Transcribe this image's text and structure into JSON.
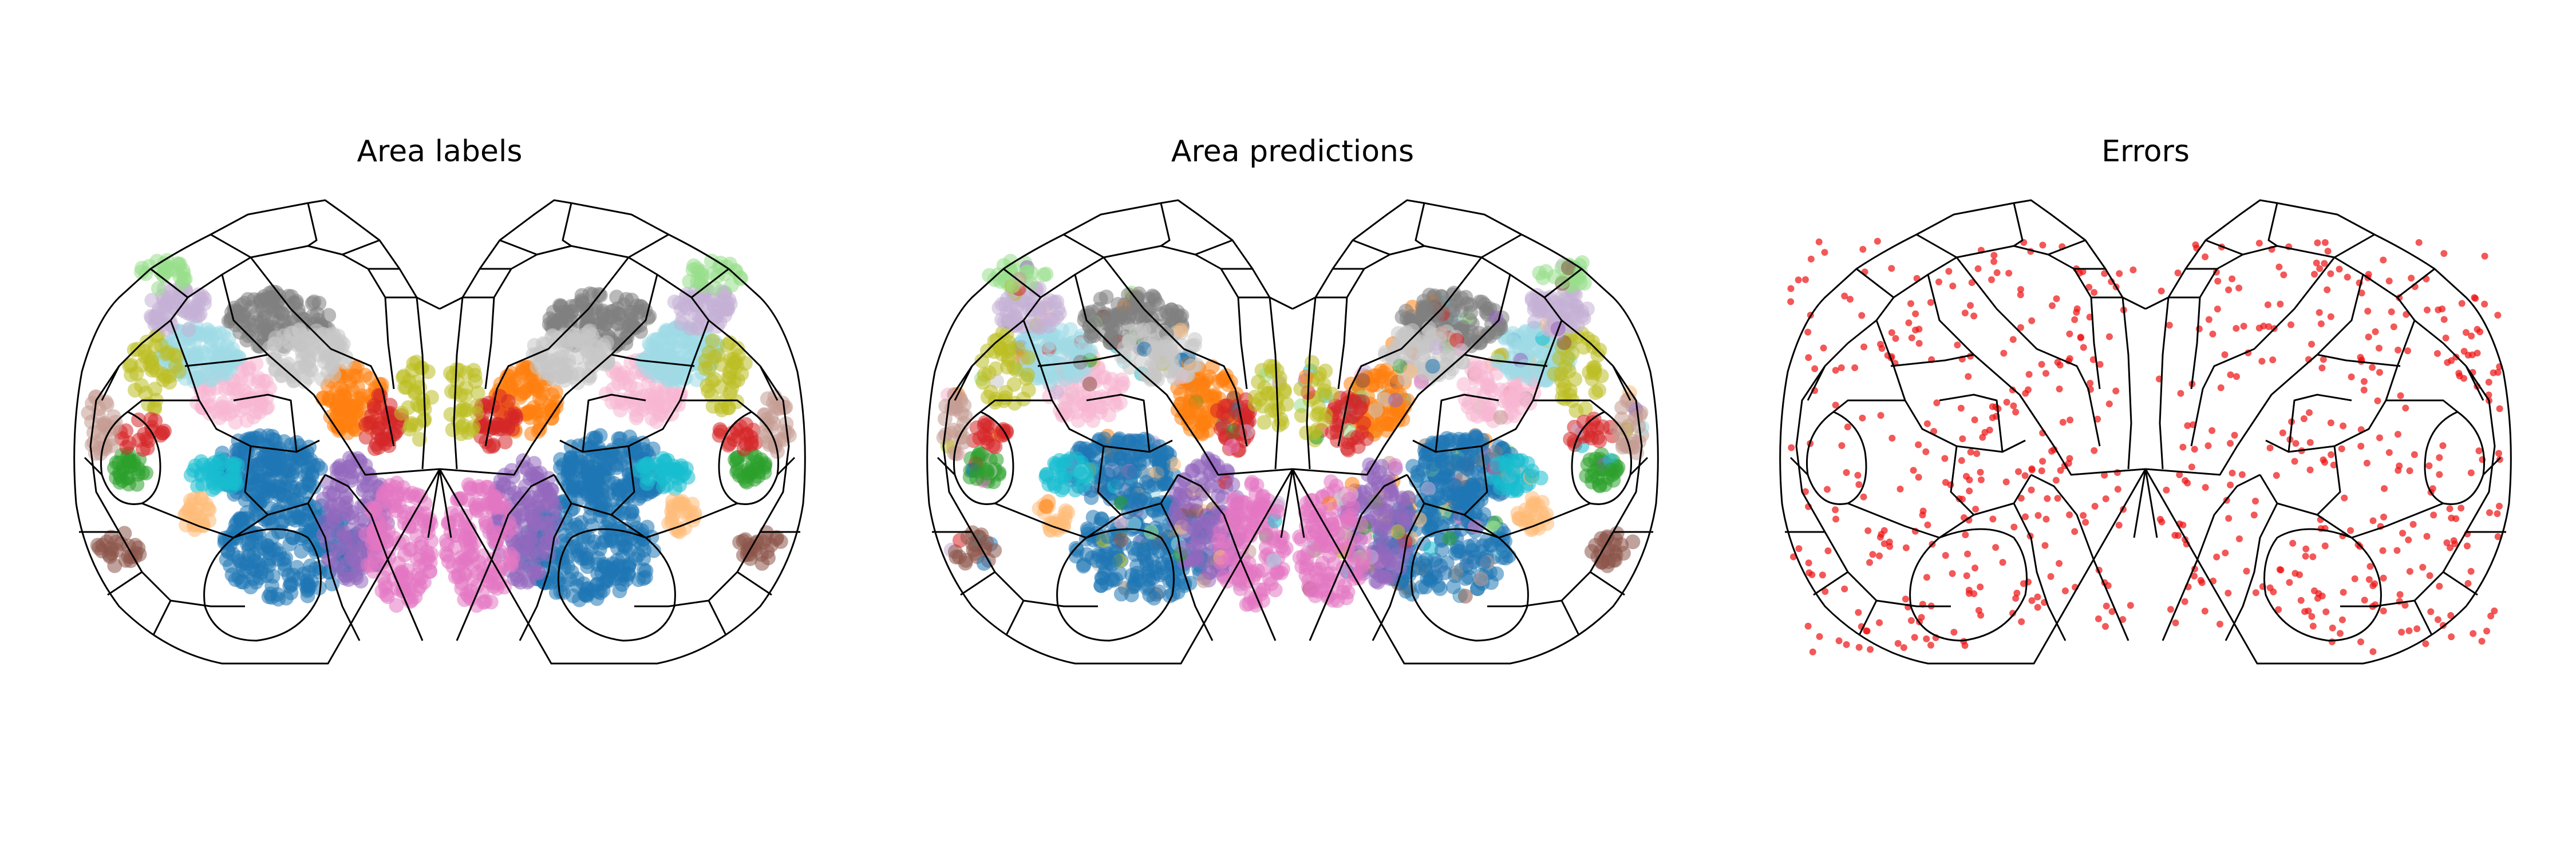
{
  "panels": [
    {
      "id": "labels",
      "title": "Area labels"
    },
    {
      "id": "predictions",
      "title": "Area predictions"
    },
    {
      "id": "errors",
      "title": "Errors"
    }
  ],
  "palette": {
    "blue": "#1f77b4",
    "orange": "#ff7f0e",
    "green": "#2ca02c",
    "red": "#d62728",
    "purple": "#9467bd",
    "brown": "#8c564b",
    "pink": "#e377c2",
    "gray": "#7f7f7f",
    "olive": "#bcbd22",
    "cyan": "#17becf",
    "lightblue": "#9edae5",
    "lightpink": "#f7b6d2",
    "lightgray": "#c7c7c7",
    "lightorange": "#ffbb78",
    "lightpurple": "#c5b0d5",
    "lightgreen": "#98df8a",
    "lightbrown": "#c49c94",
    "lightred": "#ff9896",
    "error": "#ee1111",
    "outline": "#000000"
  }
}
